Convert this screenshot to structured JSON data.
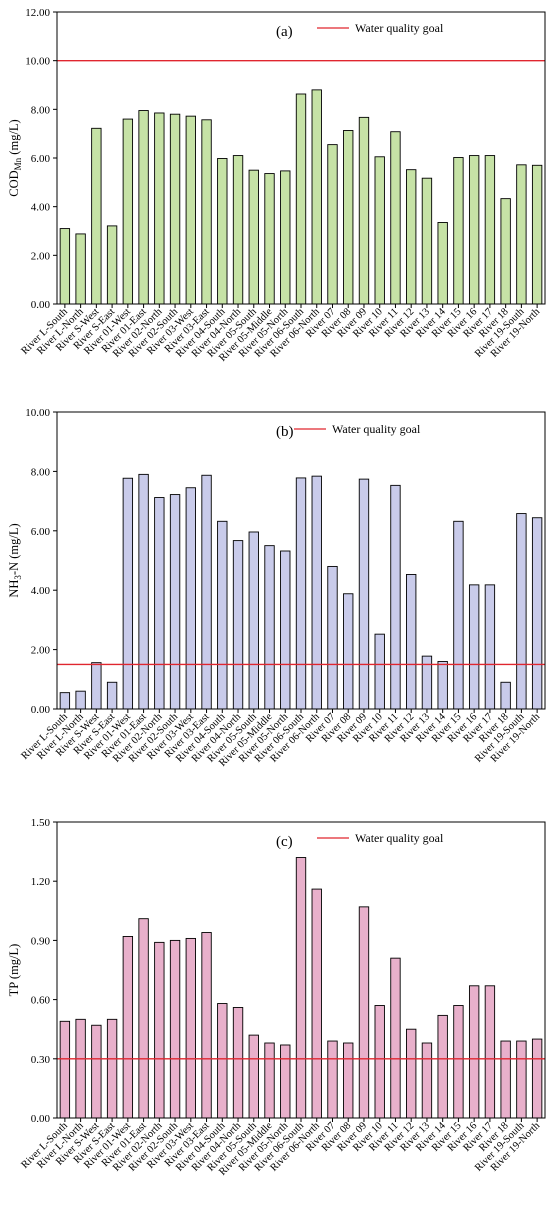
{
  "chart_data": [
    {
      "type": "bar",
      "panel_label": "(a)",
      "ylabel_main": "COD",
      "ylabel_sub": "Mn",
      "ylabel_rest": " (mg/L)",
      "ylim": [
        0,
        12
      ],
      "yticks": [
        "0.00",
        "2.00",
        "4.00",
        "6.00",
        "8.00",
        "10.00",
        "12.00"
      ],
      "bar_color": "#c6e2a6",
      "goal_value": 10.0,
      "goal_color": "#e0262f",
      "legend": "Water quality goal",
      "legend_position": "top-right",
      "categories": [
        "River L-South",
        "River L-North",
        "River S-West",
        "River S-East",
        "River 01-West",
        "River 01-East",
        "River 02-North",
        "River 02-South",
        "River 03-West",
        "River 03-East",
        "River 04-South",
        "River 04-North",
        "River 05-South",
        "River 05-Middle",
        "River 05-North",
        "River 06-South",
        "River 06-North",
        "River 07",
        "River 08",
        "River 09",
        "River 10",
        "River 11",
        "River 12",
        "River 13",
        "River 14",
        "River 15",
        "River 16",
        "River 17",
        "River 18",
        "River 19-South",
        "River 19-North"
      ],
      "values": [
        3.1,
        2.88,
        7.22,
        3.21,
        7.6,
        7.95,
        7.85,
        7.8,
        7.72,
        7.57,
        5.98,
        6.1,
        5.5,
        5.36,
        5.47,
        8.63,
        8.8,
        6.55,
        7.13,
        7.67,
        6.05,
        7.08,
        5.52,
        5.17,
        3.35,
        6.02,
        6.1,
        6.1,
        4.33,
        5.72,
        5.7
      ]
    },
    {
      "type": "bar",
      "panel_label": "(b)",
      "ylabel_main": "NH",
      "ylabel_sub": "3",
      "ylabel_rest": "-N (mg/L)",
      "ylim": [
        0,
        10
      ],
      "yticks": [
        "0.00",
        "2.00",
        "4.00",
        "6.00",
        "8.00",
        "10.00"
      ],
      "bar_color": "#c9cbea",
      "goal_value": 1.5,
      "goal_color": "#e0262f",
      "legend": "Water quality goal",
      "legend_position": "top-center",
      "categories": [
        "River L-South",
        "River L-North",
        "River S-West",
        "River S-East",
        "River 01-West",
        "River 01-East",
        "River 02-North",
        "River 02-South",
        "River 03-West",
        "River 03-East",
        "River 04-South",
        "River 04-North",
        "River 05-South",
        "River 05-Middle",
        "River 05-North",
        "River 06-South",
        "River 06-North",
        "River 07",
        "River 08",
        "River 09",
        "River 10",
        "River 11",
        "River 12",
        "River 13",
        "River 14",
        "River 15",
        "River 16",
        "River 17",
        "River 18",
        "River 19-South",
        "River 19-North"
      ],
      "values": [
        0.55,
        0.6,
        1.56,
        0.9,
        7.77,
        7.9,
        7.12,
        7.22,
        7.45,
        7.87,
        6.32,
        5.67,
        5.96,
        5.5,
        5.32,
        7.78,
        7.84,
        4.8,
        3.88,
        7.74,
        2.52,
        7.53,
        4.53,
        1.78,
        1.6,
        6.32,
        4.18,
        4.18,
        0.9,
        6.58,
        6.44
      ]
    },
    {
      "type": "bar",
      "panel_label": "(c)",
      "ylabel_main": "TP (mg/L)",
      "ylabel_sub": "",
      "ylabel_rest": "",
      "ylim": [
        0,
        1.5
      ],
      "yticks": [
        "0.00",
        "0.30",
        "0.60",
        "0.90",
        "1.20",
        "1.50"
      ],
      "bar_color": "#e8b0cb",
      "goal_value": 0.3,
      "goal_color": "#e0262f",
      "legend": "Water quality goal",
      "legend_position": "top-right",
      "categories": [
        "River L-South",
        "River L-North",
        "River S-West",
        "River S-East",
        "River 01-West",
        "River 01-East",
        "River 02-North",
        "River 02-South",
        "River 03-West",
        "River 03-East",
        "River 04-South",
        "River 04-North",
        "River 05-South",
        "River 05-Middle",
        "River 05-North",
        "River 06-South",
        "River 06-North",
        "River 07",
        "River 08",
        "River 09",
        "River 10",
        "River 11",
        "River 12",
        "River 13",
        "River 14",
        "River 15",
        "River 16",
        "River 17",
        "River 18",
        "River 19-South",
        "River 19-North"
      ],
      "values": [
        0.49,
        0.5,
        0.47,
        0.5,
        0.92,
        1.01,
        0.89,
        0.9,
        0.91,
        0.94,
        0.58,
        0.56,
        0.42,
        0.38,
        0.37,
        1.32,
        1.16,
        0.39,
        0.38,
        1.07,
        0.57,
        0.81,
        0.45,
        0.38,
        0.52,
        0.57,
        0.67,
        0.67,
        0.39,
        0.39,
        0.4
      ]
    }
  ]
}
